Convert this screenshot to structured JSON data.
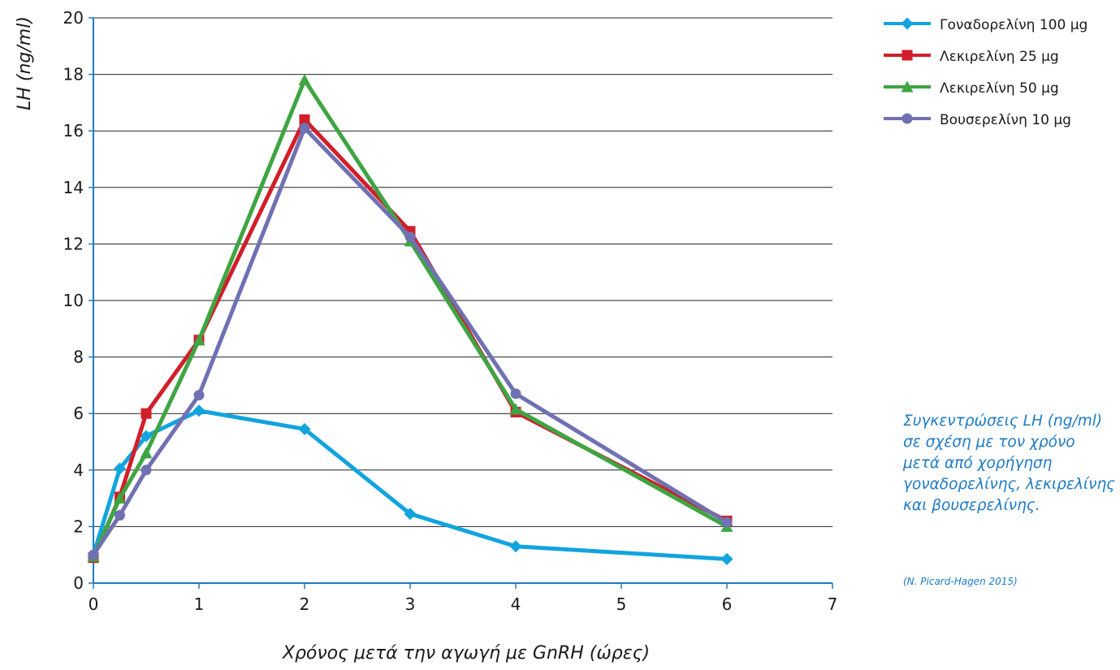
{
  "chart_data": {
    "type": "line",
    "xlabel": "Χρόνος μετά την αγωγή με GnRH (ώρες)",
    "ylabel": "LH (ng/ml)",
    "xlim": [
      0,
      7
    ],
    "ylim": [
      0,
      20
    ],
    "x_ticks": [
      0,
      1,
      2,
      3,
      4,
      5,
      6,
      7
    ],
    "y_ticks": [
      0,
      2,
      4,
      6,
      8,
      10,
      12,
      14,
      16,
      18,
      20
    ],
    "grid": "horizontal",
    "legend_position": "top-right",
    "series": [
      {
        "name": "Γοναδορελίνη 100 μg",
        "color": "#12a4de",
        "marker": "diamond",
        "x": [
          0,
          0.25,
          0.5,
          1,
          2,
          3,
          4,
          6
        ],
        "y": [
          1.0,
          4.05,
          5.2,
          6.1,
          5.45,
          2.45,
          1.3,
          0.85
        ]
      },
      {
        "name": "Λεκιρελίνη 25 μg",
        "color": "#d11f2a",
        "marker": "square",
        "x": [
          0,
          0.25,
          0.5,
          1,
          2,
          3,
          4,
          6
        ],
        "y": [
          0.9,
          3.05,
          6.0,
          8.6,
          16.4,
          12.45,
          6.05,
          2.2
        ]
      },
      {
        "name": "Λεκιρελίνη 50 μg",
        "color": "#3ea542",
        "marker": "triangle",
        "x": [
          0,
          0.25,
          0.5,
          1,
          2,
          3,
          4,
          6
        ],
        "y": [
          0.95,
          3.0,
          4.6,
          8.6,
          17.8,
          12.1,
          6.15,
          2.0
        ]
      },
      {
        "name": "Βουσερελίνη 10 μg",
        "color": "#7071b3",
        "marker": "circle",
        "x": [
          0,
          0.25,
          0.5,
          1,
          2,
          3,
          4,
          6
        ],
        "y": [
          1.0,
          2.4,
          4.0,
          6.65,
          16.1,
          12.25,
          6.7,
          2.15
        ]
      }
    ]
  },
  "caption": "Συγκεντρώσεις LH (ng/ml) σε σχέση με τον χρόνο μετά από χορήγηση γοναδορελίνης, λεκιρελίνης και βουσερελίνης.",
  "source": "(N. Picard-Hagen 2015)"
}
